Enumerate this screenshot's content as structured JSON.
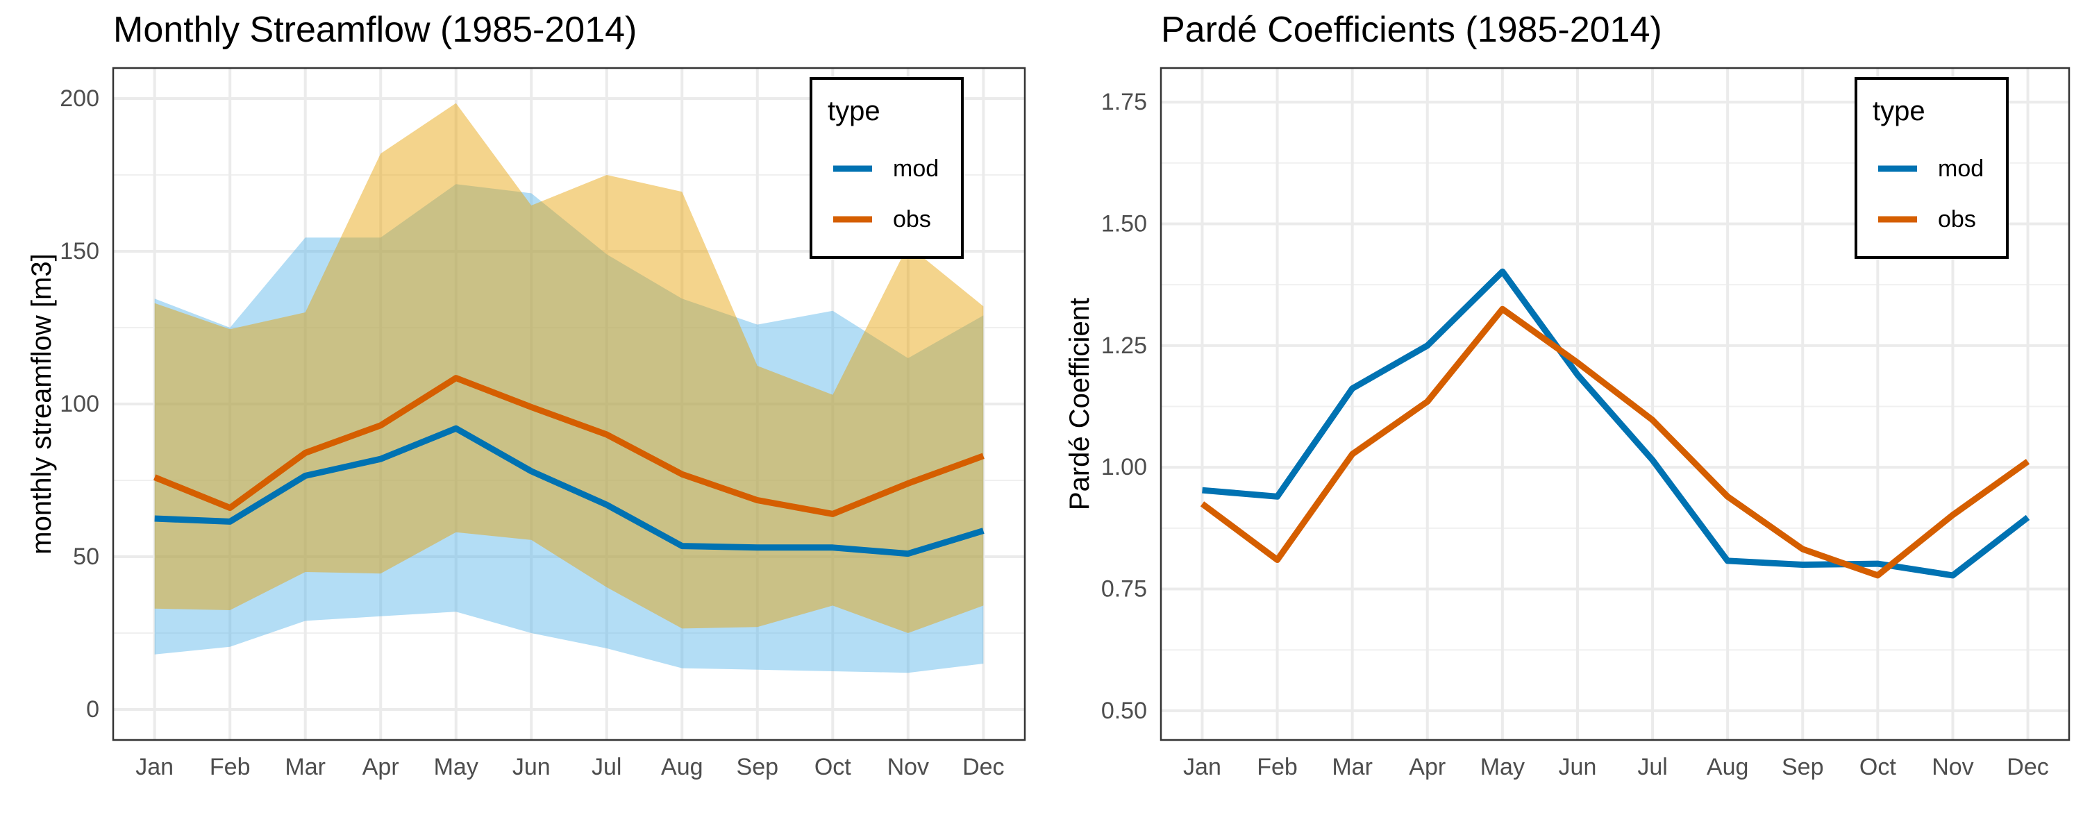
{
  "chart_data": [
    {
      "type": "line",
      "title": "Monthly Streamflow (1985-2014)",
      "xlabel": "",
      "ylabel": "monthly streamflow [m3]",
      "categories": [
        "Jan",
        "Feb",
        "Mar",
        "Apr",
        "May",
        "Jun",
        "Jul",
        "Aug",
        "Sep",
        "Oct",
        "Nov",
        "Dec"
      ],
      "ylim": [
        -10,
        210
      ],
      "yticks": [
        0,
        50,
        100,
        150,
        200
      ],
      "grid": true,
      "legend": {
        "title": "type",
        "position": "top-right"
      },
      "series": [
        {
          "name": "mod",
          "color": "#0072B2",
          "band_color": "#56B4E9",
          "values": [
            62.5,
            61.5,
            76.5,
            82,
            92,
            78,
            67,
            53.5,
            53,
            53,
            51,
            58.5
          ],
          "band_low": [
            18,
            20.5,
            29,
            30.5,
            32,
            25,
            20,
            13.5,
            13,
            12.5,
            12,
            15
          ],
          "band_high": [
            134.5,
            125,
            154.5,
            154.5,
            172,
            169,
            149,
            134.5,
            126,
            130.5,
            115,
            129
          ]
        },
        {
          "name": "obs",
          "color": "#D55E00",
          "band_color": "#E69F00",
          "values": [
            76,
            66,
            84,
            93,
            108.5,
            99,
            90,
            77,
            68.5,
            64,
            74,
            83
          ],
          "band_low": [
            33,
            32.5,
            45,
            44.5,
            58,
            55.5,
            40,
            26.5,
            27,
            34,
            25,
            34
          ],
          "band_high": [
            133,
            124.5,
            130,
            182,
            198.5,
            165,
            175,
            169.5,
            112.5,
            103,
            152,
            132
          ]
        }
      ]
    },
    {
      "type": "line",
      "title": "Pardé Coefficients (1985-2014)",
      "xlabel": "",
      "ylabel": "Pardé Coefficient",
      "categories": [
        "Jan",
        "Feb",
        "Mar",
        "Apr",
        "May",
        "Jun",
        "Jul",
        "Aug",
        "Sep",
        "Oct",
        "Nov",
        "Dec"
      ],
      "ylim": [
        0.44,
        1.82
      ],
      "yticks": [
        0.5,
        0.75,
        1.0,
        1.25,
        1.5,
        1.75
      ],
      "ytick_labels": [
        "0.50",
        "0.75",
        "1.00",
        "1.25",
        "1.50",
        "1.75"
      ],
      "grid": true,
      "legend": {
        "title": "type",
        "position": "top-right"
      },
      "series": [
        {
          "name": "mod",
          "color": "#0072B2",
          "values": [
            0.953,
            0.94,
            1.162,
            1.25,
            1.402,
            1.19,
            1.015,
            0.808,
            0.8,
            0.802,
            0.778,
            0.897
          ]
        },
        {
          "name": "obs",
          "color": "#D55E00",
          "values": [
            0.925,
            0.81,
            1.027,
            1.135,
            1.325,
            1.215,
            1.097,
            0.94,
            0.832,
            0.778,
            0.902,
            1.012
          ]
        }
      ]
    }
  ]
}
